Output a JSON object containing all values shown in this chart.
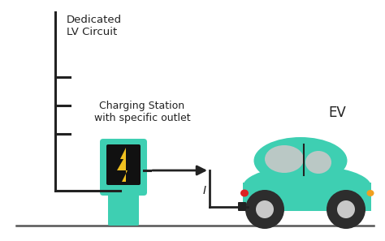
{
  "bg_color": "#ffffff",
  "ground_color": "#555555",
  "teal_color": "#3ecfb2",
  "black_color": "#222222",
  "gray_color": "#c8c8c8",
  "yellow_color": "#f0c020",
  "red_color": "#dd2222",
  "orange_color": "#f0a020",
  "wire_color": "#222222",
  "text_dedicated": "Dedicated\nLV Circuit",
  "text_station": "Charging Station\nwith specific outlet",
  "text_ev": "EV",
  "text_current": "I",
  "figsize": [
    4.74,
    2.97
  ],
  "dpi": 100,
  "xlim": [
    0,
    474
  ],
  "ylim": [
    0,
    297
  ]
}
